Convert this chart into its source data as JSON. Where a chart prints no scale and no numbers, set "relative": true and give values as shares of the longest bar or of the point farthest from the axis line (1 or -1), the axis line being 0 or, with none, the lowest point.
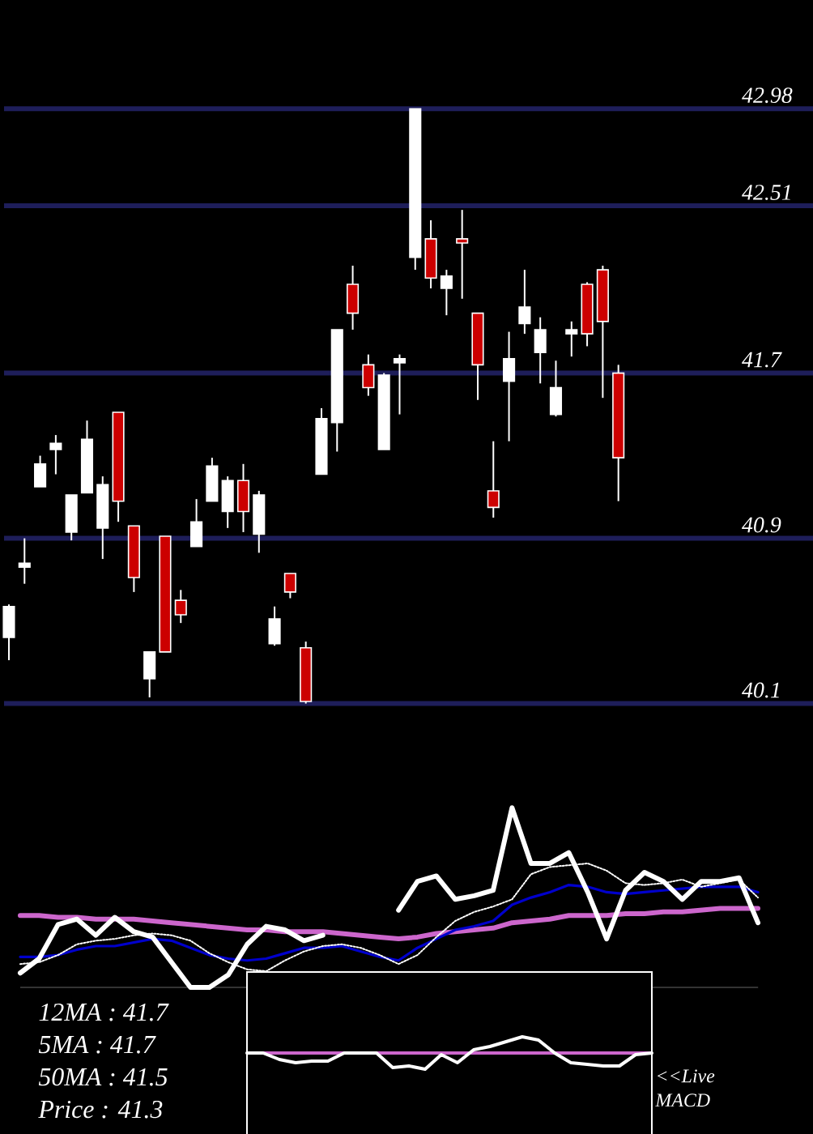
{
  "chart_data": [
    {
      "type": "candlestick",
      "categories": [
        null,
        null,
        null,
        null,
        null,
        null,
        null,
        null,
        null,
        null,
        null,
        null,
        null,
        null,
        null,
        null,
        null,
        null,
        null,
        null,
        null,
        null,
        null,
        null,
        null,
        null,
        null,
        null,
        null,
        null,
        null,
        null,
        null,
        null,
        null,
        null,
        null,
        null,
        null,
        null
      ],
      "ohlc": [
        [
          40.42,
          40.58,
          40.31,
          40.57
        ],
        [
          40.76,
          40.9,
          40.68,
          40.78
        ],
        [
          41.15,
          41.3,
          41.15,
          41.26
        ],
        [
          41.33,
          41.4,
          41.21,
          41.36
        ],
        [
          40.93,
          41.11,
          40.89,
          41.11
        ],
        [
          41.12,
          41.47,
          41.12,
          41.38
        ],
        [
          40.95,
          41.2,
          40.8,
          41.16
        ],
        [
          41.51,
          41.51,
          40.98,
          41.08
        ],
        [
          40.96,
          40.96,
          40.64,
          40.71
        ],
        [
          40.22,
          40.35,
          40.13,
          40.35
        ],
        [
          40.91,
          40.91,
          40.35,
          40.35
        ],
        [
          40.6,
          40.65,
          40.49,
          40.53
        ],
        [
          40.86,
          41.09,
          40.86,
          40.98
        ],
        [
          41.08,
          41.29,
          41.08,
          41.25
        ],
        [
          41.03,
          41.2,
          40.95,
          41.18
        ],
        [
          41.18,
          41.26,
          40.93,
          41.03
        ],
        [
          40.92,
          41.13,
          40.83,
          41.11
        ],
        [
          40.39,
          40.57,
          40.38,
          40.51
        ],
        [
          40.73,
          40.73,
          40.61,
          40.64
        ],
        [
          40.37,
          40.4,
          40.1,
          40.11
        ],
        [
          41.21,
          41.53,
          41.21,
          41.48
        ],
        [
          41.46,
          41.91,
          41.32,
          41.91
        ],
        [
          42.13,
          42.22,
          41.91,
          41.99
        ],
        [
          41.74,
          41.79,
          41.59,
          41.63
        ],
        [
          41.33,
          41.7,
          41.33,
          41.69
        ],
        [
          41.75,
          41.79,
          41.5,
          41.77
        ],
        [
          42.26,
          42.98,
          42.2,
          42.98
        ],
        [
          42.35,
          42.44,
          42.11,
          42.16
        ],
        [
          42.11,
          42.2,
          41.98,
          42.17
        ],
        [
          42.35,
          42.49,
          42.06,
          42.33
        ],
        [
          41.99,
          41.99,
          41.57,
          41.74
        ],
        [
          41.13,
          41.37,
          41.0,
          41.05
        ],
        [
          41.66,
          41.9,
          41.37,
          41.77
        ],
        [
          41.94,
          42.2,
          41.89,
          42.02
        ],
        [
          41.8,
          41.97,
          41.65,
          41.91
        ],
        [
          41.5,
          41.76,
          41.49,
          41.63
        ],
        [
          41.89,
          41.95,
          41.78,
          41.91
        ],
        [
          42.13,
          42.14,
          41.83,
          41.89
        ],
        [
          42.2,
          42.22,
          41.58,
          41.95
        ],
        [
          41.7,
          41.74,
          41.08,
          41.29
        ]
      ],
      "colors": [
        "#ffffff",
        "#ffffff",
        "#ffffff",
        "#ffffff",
        "#ffffff",
        "#ffffff",
        "#ffffff",
        "#cc0000",
        "#cc0000",
        "#ffffff",
        "#cc0000",
        "#cc0000",
        "#ffffff",
        "#ffffff",
        "#ffffff",
        "#cc0000",
        "#ffffff",
        "#ffffff",
        "#cc0000",
        "#cc0000",
        "#ffffff",
        "#ffffff",
        "#cc0000",
        "#cc0000",
        "#ffffff",
        "#ffffff",
        "#ffffff",
        "#cc0000",
        "#ffffff",
        "#cc0000",
        "#cc0000",
        "#cc0000",
        "#ffffff",
        "#ffffff",
        "#ffffff",
        "#ffffff",
        "#ffffff",
        "#cc0000",
        "#cc0000",
        "#cc0000"
      ],
      "ylim": [
        40.1,
        42.98
      ],
      "yticks": [
        40.1,
        40.9,
        41.7,
        42.51,
        42.98
      ],
      "grid": "y",
      "tick_labels": "y"
    },
    {
      "type": "line",
      "relative": true,
      "categories": [
        null,
        null,
        null,
        null,
        null,
        null,
        null,
        null,
        null,
        null,
        null,
        null,
        null,
        null,
        null,
        null,
        null,
        null,
        null,
        null,
        null,
        null,
        null,
        null,
        null,
        null,
        null,
        null,
        null,
        null,
        null,
        null,
        null,
        null,
        null,
        null,
        null,
        null,
        null,
        null
      ],
      "series": [
        {
          "color": "#cc66cc",
          "values": [
            0.4,
            0.4,
            0.39,
            0.39,
            0.38,
            0.38,
            0.38,
            0.37,
            0.36,
            0.35,
            0.34,
            0.33,
            0.32,
            0.32,
            0.31,
            0.31,
            0.31,
            0.3,
            0.29,
            0.28,
            0.27,
            0.28,
            0.3,
            0.31,
            0.32,
            0.33,
            0.36,
            0.37,
            0.38,
            0.4,
            0.4,
            0.4,
            0.41,
            0.41,
            0.42,
            0.42,
            0.43,
            0.44,
            0.44,
            0.44
          ]
        },
        {
          "color": "#0000cc",
          "values": [
            0.17,
            0.17,
            0.18,
            0.21,
            0.23,
            0.23,
            0.25,
            0.27,
            0.26,
            0.22,
            0.18,
            0.16,
            0.15,
            0.16,
            0.19,
            0.22,
            0.22,
            0.23,
            0.2,
            0.17,
            0.15,
            0.22,
            0.27,
            0.32,
            0.34,
            0.37,
            0.46,
            0.5,
            0.53,
            0.57,
            0.56,
            0.53,
            0.52,
            0.53,
            0.54,
            0.55,
            0.56,
            0.56,
            0.56,
            0.53
          ]
        },
        {
          "color": "#ffffff",
          "line_style": "dotted",
          "values": [
            0.13,
            0.14,
            0.18,
            0.24,
            0.26,
            0.27,
            0.29,
            0.3,
            0.29,
            0.26,
            0.19,
            0.14,
            0.1,
            0.09,
            0.15,
            0.2,
            0.23,
            0.24,
            0.22,
            0.18,
            0.13,
            0.18,
            0.28,
            0.37,
            0.42,
            0.45,
            0.49,
            0.63,
            0.67,
            0.68,
            0.69,
            0.65,
            0.58,
            0.57,
            0.58,
            0.6,
            0.56,
            0.58,
            0.6,
            0.5
          ]
        },
        {
          "color": "#ffffff",
          "values": [
            0.08,
            0.16,
            0.35,
            0.38,
            0.29,
            0.39,
            0.31,
            0.28,
            0.14,
            0,
            0,
            0.07,
            0.24,
            0.34,
            0.32,
            0.26,
            0.29,
            null,
            null,
            null,
            0.43,
            0.59,
            0.62,
            0.49,
            0.51,
            0.54,
            1,
            0.69,
            0.69,
            0.75,
            0.53,
            0.27,
            0.54,
            0.64,
            0.59,
            0.49,
            0.59,
            0.59,
            0.61,
            0.36
          ]
        }
      ],
      "annotations": [
        "12MA : 41.7",
        "5MA : 41.7",
        "50MA : 41.5",
        "Price : 41.3"
      ]
    },
    {
      "type": "line",
      "relative": true,
      "categories": [
        null,
        null,
        null,
        null,
        null,
        null,
        null,
        null,
        null,
        null,
        null,
        null,
        null,
        null,
        null,
        null,
        null,
        null,
        null,
        null,
        null,
        null,
        null,
        null,
        null,
        null
      ],
      "series": [
        {
          "color": "#ffffff",
          "values": [
            0,
            0,
            -0.4,
            -0.6,
            -0.5,
            -0.5,
            0,
            0,
            0,
            -0.9,
            -0.8,
            -1,
            -0.1,
            -0.6,
            0.2,
            0.4,
            0.7,
            1,
            0.8,
            0,
            -0.6,
            -0.7,
            -0.8,
            -0.8,
            -0.1,
            0
          ]
        }
      ],
      "ref_lines": [
        {
          "axis": "y",
          "value": 0,
          "color": "#cc66cc"
        }
      ],
      "annotations": [
        "<<Live MACD"
      ]
    }
  ]
}
